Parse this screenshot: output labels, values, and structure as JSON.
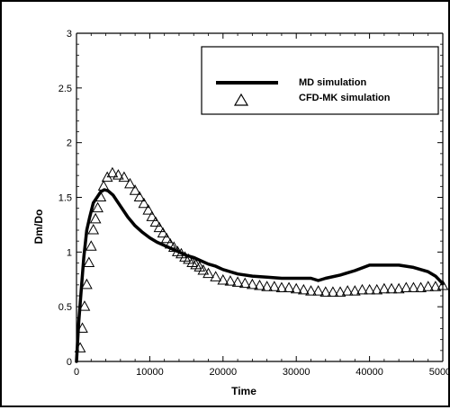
{
  "chart_data": {
    "type": "line",
    "xlabel": "Time",
    "ylabel": "Dm/Do",
    "xlim": [
      0,
      50000
    ],
    "ylim": [
      0,
      3
    ],
    "x_ticks": [
      0,
      10000,
      20000,
      30000,
      40000,
      50000
    ],
    "x_tick_labels": [
      "0",
      "10000",
      "20000",
      "30000",
      "40000",
      "50000"
    ],
    "y_ticks": [
      0,
      0.5,
      1,
      1.5,
      2,
      2.5,
      3
    ],
    "y_tick_labels": [
      "0",
      "0.5",
      "1",
      "1.5",
      "2",
      "2.5",
      "3"
    ],
    "grid": false,
    "legend_position": "top-right",
    "series": [
      {
        "name": "MD simulation",
        "style": "line",
        "color": "#000000",
        "x": [
          0,
          300,
          700,
          1000,
          1400,
          1800,
          2300,
          2800,
          3300,
          3800,
          4300,
          5000,
          6000,
          7000,
          8000,
          9000,
          10000,
          11000,
          12000,
          13000,
          14000,
          15000,
          16000,
          17000,
          18000,
          19000,
          20000,
          22000,
          24000,
          26000,
          28000,
          30000,
          32000,
          33000,
          34000,
          36000,
          38000,
          40000,
          42000,
          44000,
          46000,
          48000,
          49000,
          50000
        ],
        "y": [
          0.0,
          0.35,
          0.7,
          0.95,
          1.2,
          1.32,
          1.45,
          1.5,
          1.55,
          1.57,
          1.56,
          1.52,
          1.42,
          1.32,
          1.24,
          1.18,
          1.13,
          1.09,
          1.06,
          1.03,
          1.0,
          0.97,
          0.95,
          0.92,
          0.89,
          0.87,
          0.84,
          0.8,
          0.78,
          0.77,
          0.76,
          0.76,
          0.76,
          0.74,
          0.76,
          0.79,
          0.83,
          0.88,
          0.88,
          0.88,
          0.86,
          0.82,
          0.78,
          0.71
        ]
      },
      {
        "name": "CFD-MK simulation",
        "style": "open-triangle-markers",
        "color": "#000000",
        "x": [
          500,
          800,
          1100,
          1400,
          1700,
          2000,
          2300,
          2600,
          2900,
          3300,
          3700,
          4200,
          4900,
          5700,
          6500,
          7300,
          8000,
          8600,
          9200,
          9800,
          10300,
          10800,
          11300,
          11800,
          12300,
          12800,
          13300,
          13800,
          14300,
          14800,
          15300,
          15800,
          16300,
          16800,
          17300,
          18000,
          19000,
          20000,
          21000,
          22000,
          23000,
          24000,
          25000,
          26000,
          27000,
          28000,
          29000,
          30000,
          31000,
          32000,
          33000,
          34000,
          35000,
          36000,
          37000,
          38000,
          39000,
          40000,
          41000,
          42000,
          43000,
          44000,
          45000,
          46000,
          47000,
          48000,
          49000,
          50000
        ],
        "y": [
          0.12,
          0.3,
          0.5,
          0.7,
          0.9,
          1.05,
          1.2,
          1.3,
          1.4,
          1.5,
          1.6,
          1.68,
          1.72,
          1.7,
          1.68,
          1.62,
          1.56,
          1.5,
          1.44,
          1.38,
          1.32,
          1.27,
          1.22,
          1.17,
          1.12,
          1.07,
          1.04,
          1.0,
          0.98,
          0.95,
          0.93,
          0.9,
          0.88,
          0.86,
          0.83,
          0.8,
          0.77,
          0.74,
          0.73,
          0.72,
          0.71,
          0.7,
          0.69,
          0.68,
          0.68,
          0.67,
          0.67,
          0.66,
          0.65,
          0.64,
          0.64,
          0.63,
          0.63,
          0.63,
          0.64,
          0.64,
          0.65,
          0.65,
          0.65,
          0.66,
          0.66,
          0.66,
          0.67,
          0.67,
          0.67,
          0.68,
          0.68,
          0.69
        ]
      }
    ]
  }
}
